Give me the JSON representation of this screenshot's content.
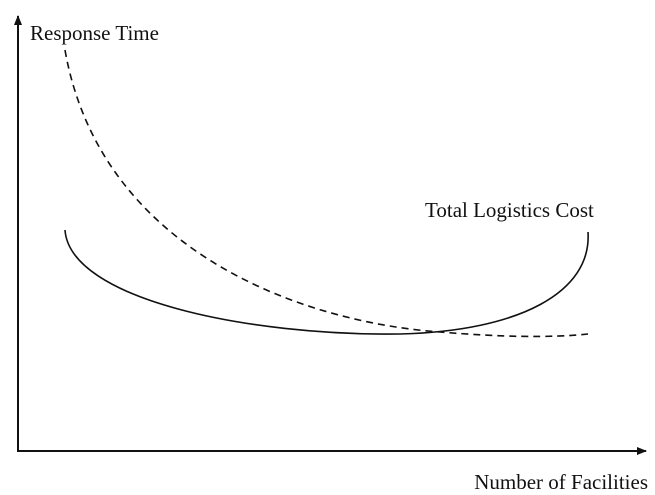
{
  "axes": {
    "y_label": "Response Time",
    "x_label": "Number of Facilities"
  },
  "curves": {
    "solid_label": "Total Logistics Cost"
  }
}
